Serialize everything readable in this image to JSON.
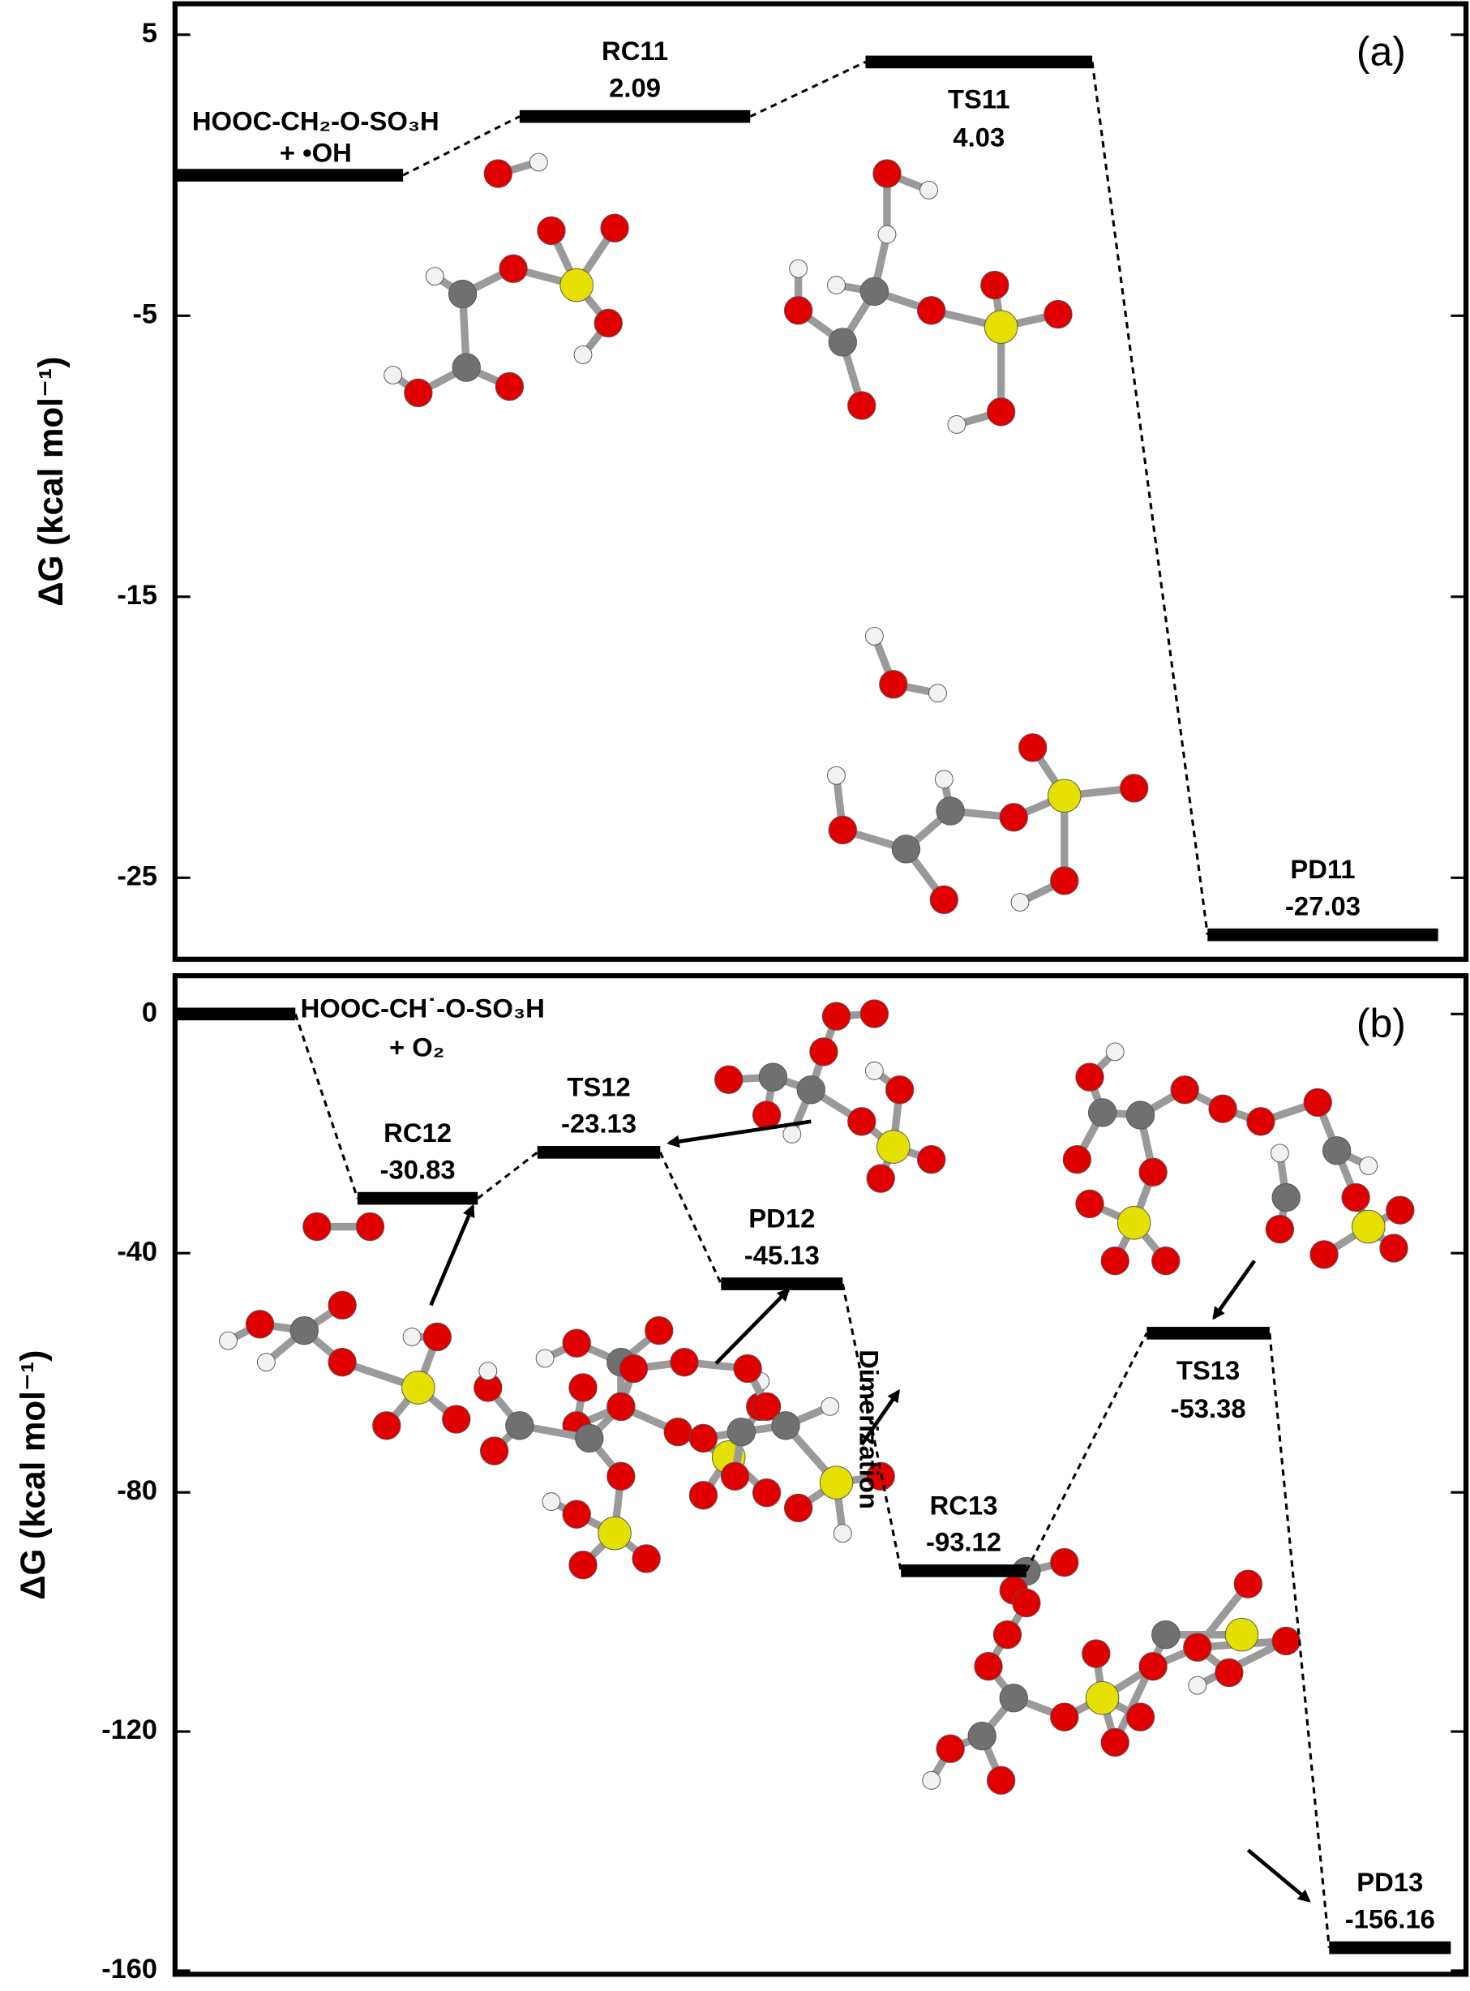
{
  "chart_data": [
    {
      "type": "profile",
      "panel_label": "(a)",
      "y_label": "ΔG (kcal mol⁻¹)",
      "ylim": [
        -27.9,
        6.1
      ],
      "yticks": [
        5,
        -5,
        -15,
        -25
      ],
      "categories": [
        [
          "HOOC-CH₂-O-SO₃H",
          "+ •OH"
        ],
        "RC11",
        "TS11",
        "PD11"
      ],
      "values": [
        0,
        2.09,
        4.03,
        -27.03
      ],
      "value_labels": [
        null,
        "2.09",
        "4.03",
        "-27.03"
      ],
      "color": "#000000"
    },
    {
      "type": "profile",
      "panel_label": "(b)",
      "y_label": "ΔG (kcal mol⁻¹)",
      "ylim": [
        -160.6,
        6.4
      ],
      "yticks": [
        0,
        -40,
        -80,
        -120,
        -160
      ],
      "categories": [
        [
          "HOOC-CH˙-O-SO₃H",
          "+ O₂"
        ],
        "RC12",
        "TS12",
        "PD12",
        "RC13",
        "TS13",
        "PD13"
      ],
      "values": [
        0,
        -30.83,
        -23.13,
        -45.13,
        -93.12,
        -53.38,
        -156.16
      ],
      "value_labels": [
        null,
        "-30.83",
        "-23.13",
        "-45.13",
        "-93.12",
        "-53.38",
        "-156.16"
      ],
      "annotation": "Dimerization",
      "color": "#000000"
    }
  ]
}
